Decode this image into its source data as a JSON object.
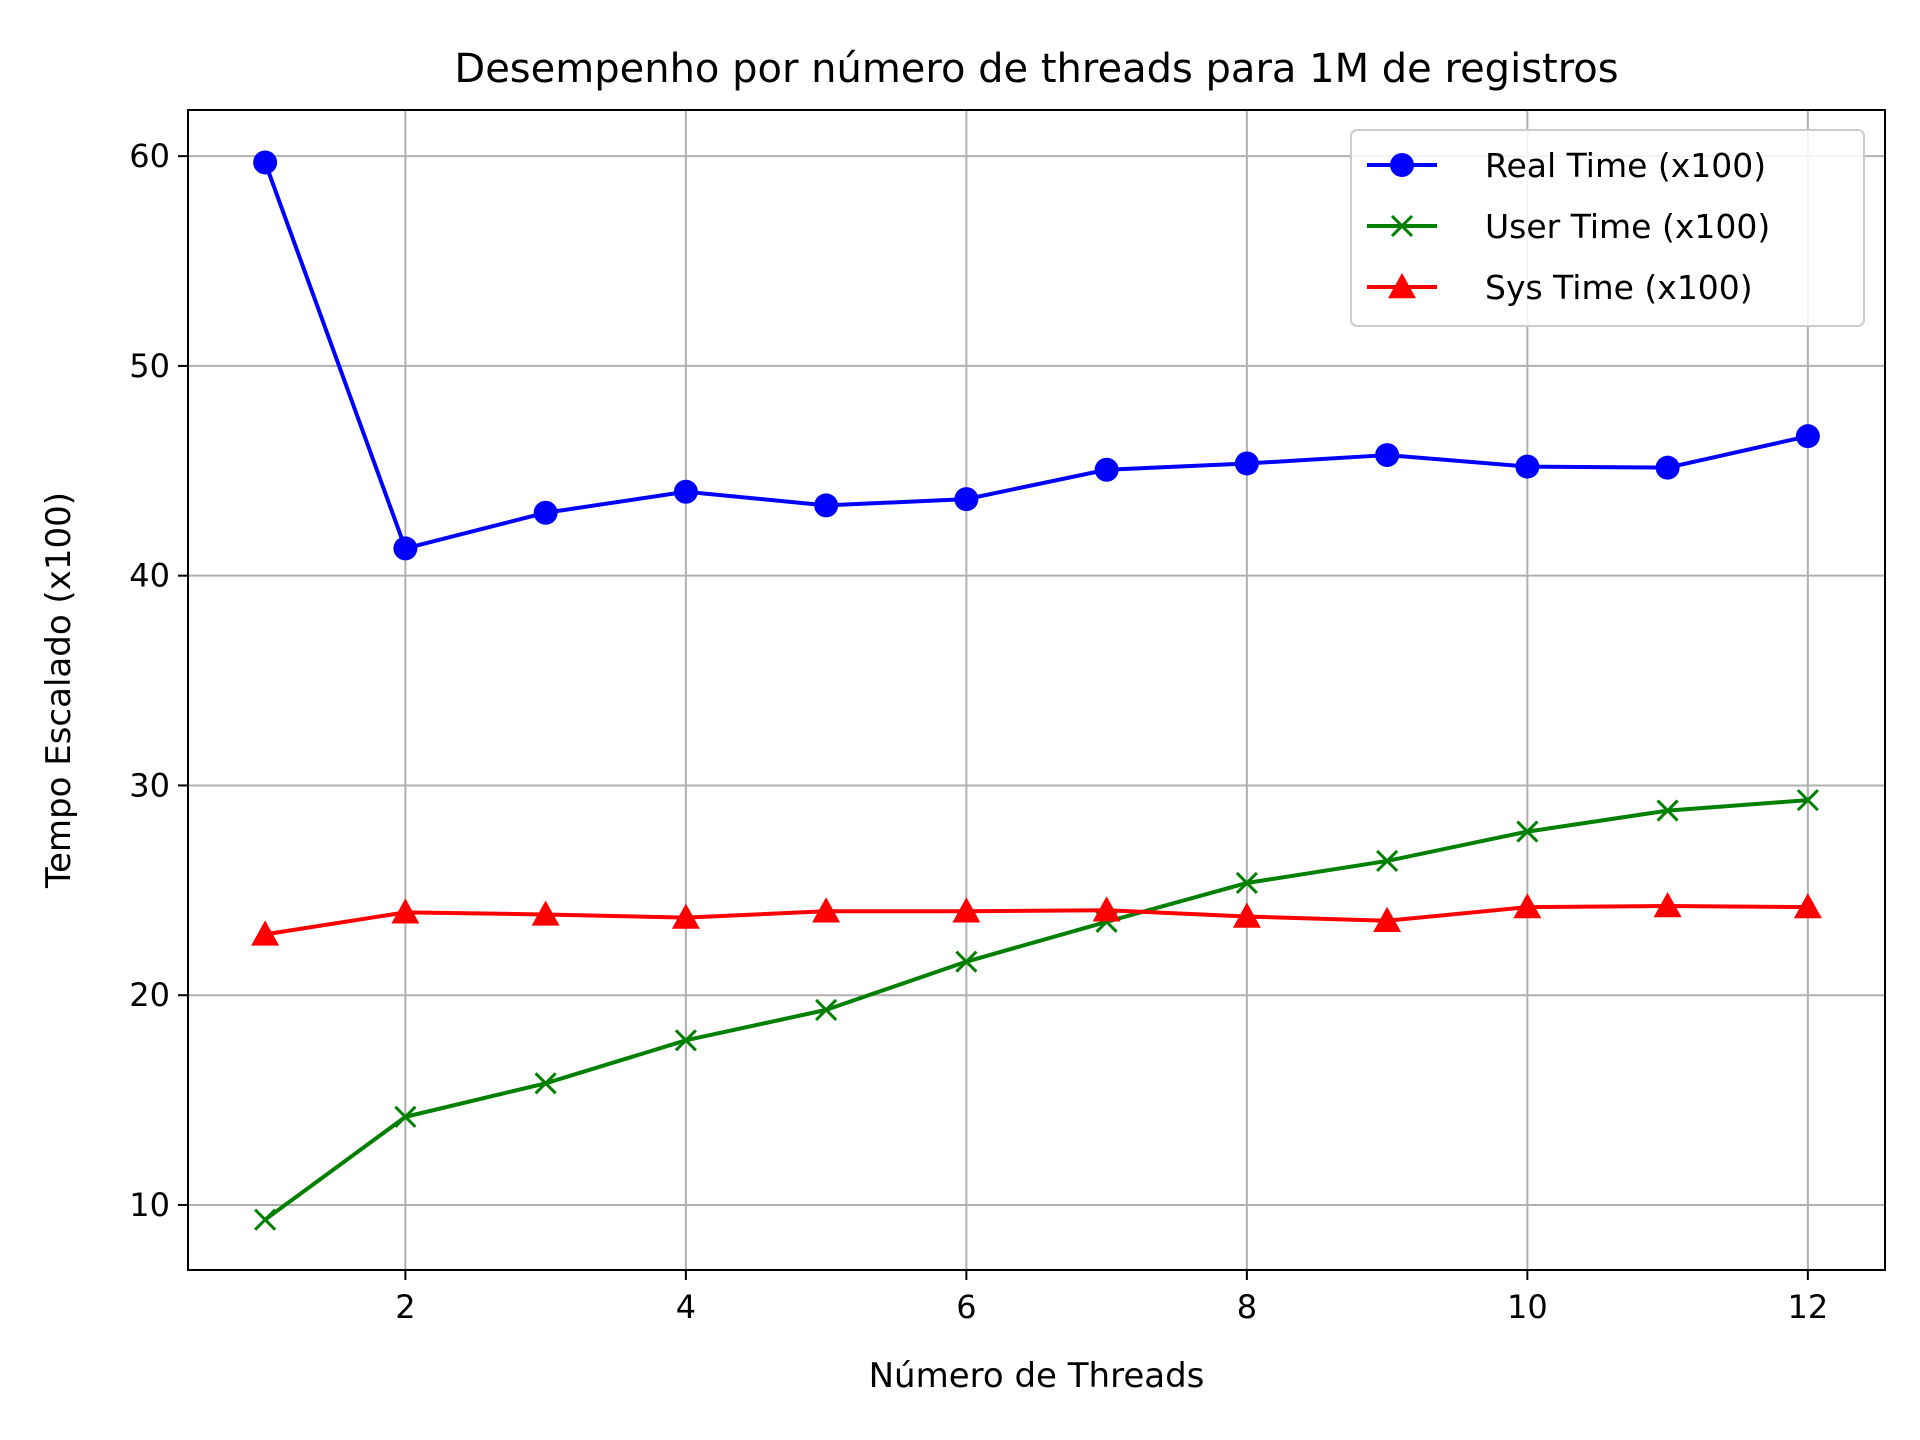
{
  "chart_data": {
    "type": "line",
    "title": "Desempenho por número de threads para 1M de registros",
    "xlabel": "Número de Threads",
    "ylabel": "Tempo Escalado (x100)",
    "x": [
      1,
      2,
      3,
      4,
      5,
      6,
      7,
      8,
      9,
      10,
      11,
      12
    ],
    "xlim": [
      0.45,
      12.55
    ],
    "ylim": [
      6.9,
      62.2
    ],
    "xticks": [
      2,
      4,
      6,
      8,
      10,
      12
    ],
    "yticks": [
      10,
      20,
      30,
      40,
      50,
      60
    ],
    "grid": true,
    "legend_position": "top-right",
    "series": [
      {
        "name": "Real Time (x100)",
        "color": "#0000ff",
        "marker": "circle",
        "values": [
          59.7,
          41.3,
          43.0,
          44.0,
          43.35,
          43.65,
          45.05,
          45.35,
          45.75,
          45.2,
          45.15,
          46.65
        ]
      },
      {
        "name": "User Time (x100)",
        "color": "#008000",
        "marker": "x",
        "values": [
          9.3,
          14.2,
          15.8,
          17.85,
          19.3,
          21.6,
          23.5,
          25.35,
          26.4,
          27.8,
          28.8,
          29.3
        ]
      },
      {
        "name": "Sys Time (x100)",
        "color": "#ff0000",
        "marker": "triangle",
        "values": [
          22.9,
          23.95,
          23.85,
          23.7,
          24.0,
          24.0,
          24.05,
          23.75,
          23.55,
          24.2,
          24.25,
          24.2
        ]
      }
    ]
  }
}
